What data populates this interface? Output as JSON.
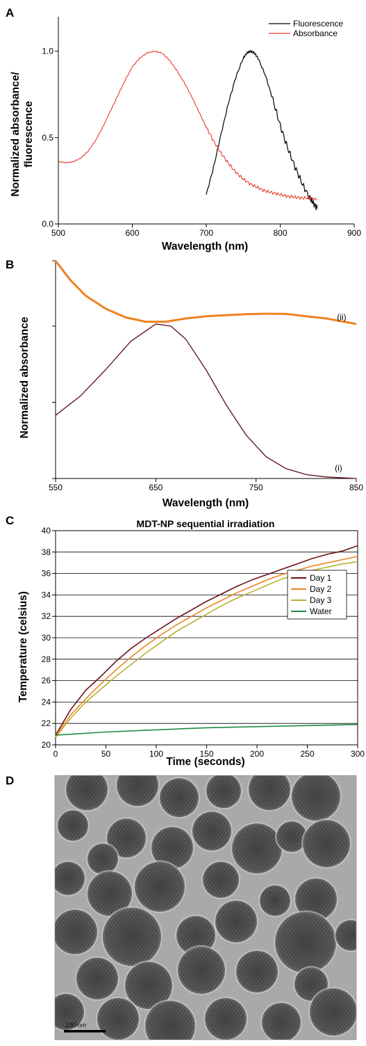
{
  "chart_data": [
    {
      "panel_label": "A",
      "type": "line",
      "xlabel": "Wavelength (nm)",
      "ylabel": "Normalized absorbance/ fluorescence",
      "ylabel_lines": [
        "Normalized absorbance/",
        "fluorescence"
      ],
      "xlim": [
        500,
        900
      ],
      "ylim": [
        0.0,
        1.2
      ],
      "xticks": [
        "500",
        "600",
        "700",
        "800",
        "900"
      ],
      "yticks": [
        "0.0",
        "0.5",
        "1.0"
      ],
      "legend": "top-right",
      "series": [
        {
          "name": "Fluorescence",
          "color": "#000000",
          "x": [
            700,
            710,
            720,
            730,
            740,
            750,
            755,
            760,
            765,
            770,
            780,
            790,
            800,
            810,
            820,
            830,
            840,
            845,
            850
          ],
          "y": [
            0.17,
            0.33,
            0.52,
            0.7,
            0.85,
            0.96,
            0.99,
            1.0,
            0.99,
            0.96,
            0.86,
            0.72,
            0.57,
            0.44,
            0.33,
            0.23,
            0.15,
            0.12,
            0.09
          ]
        },
        {
          "name": "Absorbance",
          "color": "#e8392c",
          "x": [
            500,
            510,
            520,
            530,
            540,
            550,
            560,
            570,
            580,
            590,
            600,
            610,
            620,
            630,
            640,
            650,
            660,
            670,
            680,
            690,
            700,
            710,
            720,
            730,
            740,
            750,
            760,
            770,
            780,
            790,
            800,
            810,
            820,
            830,
            840,
            850
          ],
          "y": [
            0.36,
            0.355,
            0.36,
            0.38,
            0.42,
            0.48,
            0.56,
            0.65,
            0.74,
            0.83,
            0.91,
            0.96,
            0.99,
            1.0,
            0.99,
            0.95,
            0.89,
            0.82,
            0.74,
            0.65,
            0.56,
            0.48,
            0.41,
            0.35,
            0.3,
            0.26,
            0.23,
            0.21,
            0.19,
            0.18,
            0.17,
            0.16,
            0.155,
            0.15,
            0.15,
            0.14
          ]
        }
      ]
    },
    {
      "panel_label": "B",
      "type": "line",
      "xlabel": "Wavelength (nm)",
      "ylabel": "Normalized absorbance",
      "xlim": [
        550,
        850
      ],
      "ylim": [
        0,
        1
      ],
      "xticks": [
        "550",
        "650",
        "750",
        "850"
      ],
      "grid": false,
      "series": [
        {
          "name": "(i)",
          "color": "#5a0f14",
          "x": [
            550,
            575,
            600,
            625,
            650,
            665,
            680,
            700,
            720,
            740,
            760,
            780,
            800,
            820,
            850
          ],
          "y": [
            0.29,
            0.38,
            0.5,
            0.63,
            0.71,
            0.7,
            0.64,
            0.5,
            0.34,
            0.2,
            0.1,
            0.045,
            0.018,
            0.007,
            0.0
          ]
        },
        {
          "name": "(ii)",
          "color": "#ef8221",
          "x": [
            550,
            565,
            580,
            600,
            620,
            640,
            660,
            680,
            700,
            720,
            740,
            760,
            780,
            800,
            820,
            850
          ],
          "y": [
            1.0,
            0.91,
            0.84,
            0.78,
            0.74,
            0.72,
            0.72,
            0.735,
            0.745,
            0.75,
            0.755,
            0.757,
            0.756,
            0.745,
            0.735,
            0.71
          ]
        }
      ]
    },
    {
      "panel_label": "C",
      "type": "line",
      "title": "MDT-NP sequential irradiation",
      "xlabel": "Time (seconds)",
      "ylabel": "Temperature (celsius)",
      "xlim": [
        0,
        300
      ],
      "ylim": [
        20,
        40
      ],
      "xticks": [
        "0",
        "50",
        "100",
        "150",
        "200",
        "250",
        "300"
      ],
      "yticks": [
        "20",
        "22",
        "24",
        "26",
        "28",
        "30",
        "32",
        "34",
        "36",
        "38",
        "40"
      ],
      "grid": true,
      "legend": "right",
      "series": [
        {
          "name": "Day 1",
          "color": "#6b1216",
          "x": [
            0,
            15,
            30,
            45,
            60,
            75,
            90,
            105,
            120,
            135,
            150,
            165,
            180,
            195,
            210,
            225,
            240,
            255,
            270,
            285,
            300
          ],
          "y": [
            20.9,
            23.3,
            25.1,
            26.4,
            27.8,
            29.0,
            30.0,
            30.9,
            31.8,
            32.6,
            33.4,
            34.1,
            34.8,
            35.4,
            35.9,
            36.4,
            36.9,
            37.4,
            37.8,
            38.1,
            38.6
          ]
        },
        {
          "name": "Day 2",
          "color": "#ef8221",
          "x": [
            0,
            15,
            30,
            45,
            60,
            75,
            90,
            105,
            120,
            135,
            150,
            165,
            180,
            195,
            210,
            225,
            240,
            255,
            270,
            285,
            300
          ],
          "y": [
            20.8,
            22.8,
            24.3,
            25.7,
            27.0,
            28.2,
            29.3,
            30.3,
            31.2,
            32.0,
            32.8,
            33.5,
            34.2,
            34.8,
            35.4,
            35.9,
            36.3,
            36.7,
            37.0,
            37.3,
            37.6
          ]
        },
        {
          "name": "Day 3",
          "color": "#b9ae32",
          "x": [
            0,
            15,
            30,
            45,
            60,
            75,
            90,
            105,
            120,
            135,
            150,
            165,
            180,
            195,
            210,
            225,
            240,
            255,
            270,
            285,
            300
          ],
          "y": [
            20.7,
            22.5,
            24.0,
            25.2,
            26.4,
            27.5,
            28.6,
            29.6,
            30.6,
            31.4,
            32.2,
            33.0,
            33.7,
            34.3,
            34.9,
            35.5,
            35.9,
            36.3,
            36.6,
            36.9,
            37.1
          ]
        },
        {
          "name": "Water",
          "color": "#1e8a45",
          "x": [
            0,
            50,
            100,
            150,
            200,
            250,
            300
          ],
          "y": [
            20.9,
            21.2,
            21.4,
            21.6,
            21.7,
            21.8,
            21.9
          ]
        }
      ]
    }
  ],
  "panel_d": {
    "panel_label": "D",
    "scale_bar_label": "100 nm"
  }
}
